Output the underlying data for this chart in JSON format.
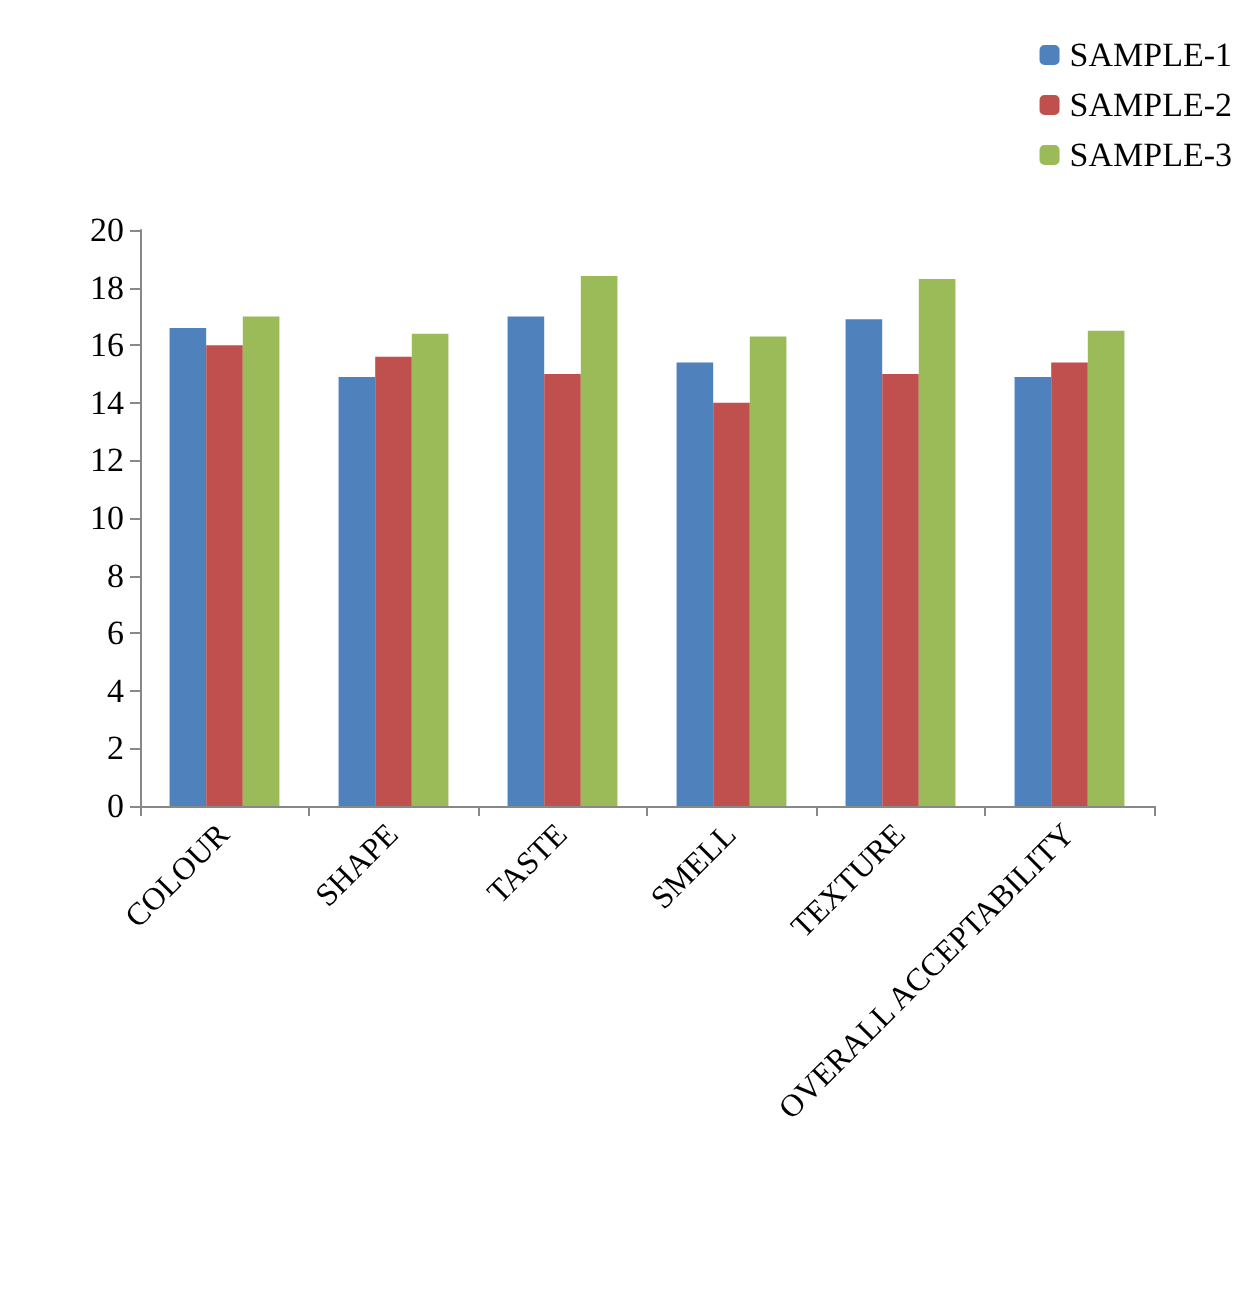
{
  "chart_data": {
    "type": "bar",
    "categories": [
      "COLOUR",
      "SHAPE",
      "TASTE",
      "SMELL",
      "TEXTURE",
      "OVERALL ACCEPTABILITY"
    ],
    "series": [
      {
        "name": "SAMPLE-1",
        "color": "#4f81bd",
        "values": [
          16.6,
          14.9,
          17.0,
          15.4,
          16.9,
          14.9
        ]
      },
      {
        "name": "SAMPLE-2",
        "color": "#c0504d",
        "values": [
          16.0,
          15.6,
          15.0,
          14.0,
          15.0,
          15.4
        ]
      },
      {
        "name": "SAMPLE-3",
        "color": "#9bbb59",
        "values": [
          17.0,
          16.4,
          18.4,
          16.3,
          18.3,
          16.5
        ]
      }
    ],
    "ylim": [
      0,
      20
    ],
    "yticks": [
      0,
      2,
      4,
      6,
      8,
      10,
      12,
      14,
      16,
      18,
      20
    ],
    "grid": false,
    "legend": "top right"
  }
}
